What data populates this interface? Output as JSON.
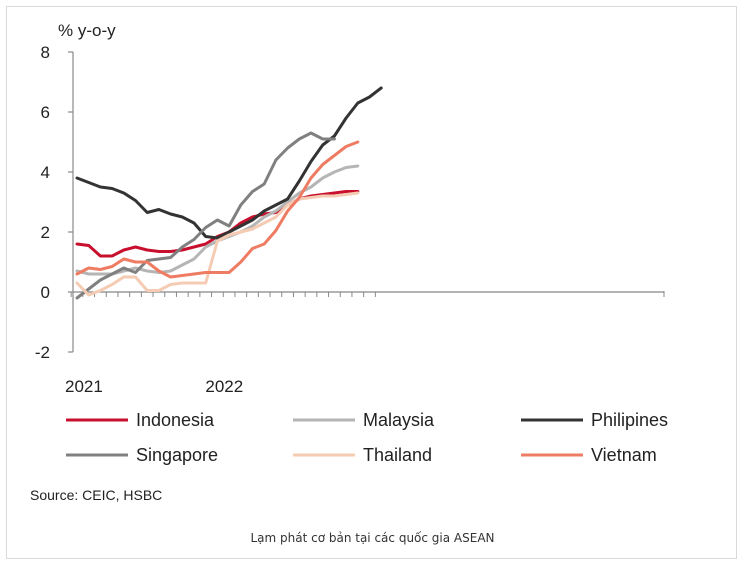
{
  "caption": "Lạm phát cơ bản tại các quốc gia ASEAN",
  "source": "Source: CEIC, HSBC",
  "chart_data": {
    "type": "line",
    "title": "",
    "ylabel": "% y-o-y",
    "xlabel": "",
    "ylim": [
      -2,
      8
    ],
    "yticks": [
      -2,
      0,
      2,
      4,
      6,
      8
    ],
    "x_tick_labels": [
      "2021",
      "2022"
    ],
    "x_tick_positions": [
      0,
      12
    ],
    "grid": false,
    "legend_position": "bottom",
    "x": [
      0,
      1,
      2,
      3,
      4,
      5,
      6,
      7,
      8,
      9,
      10,
      11,
      12,
      13,
      14,
      15,
      16,
      17,
      18,
      19,
      20,
      21,
      22,
      23,
      24,
      25,
      26
    ],
    "series": [
      {
        "name": "Indonesia",
        "color": "#c8102e",
        "values": [
          1.6,
          1.55,
          1.2,
          1.2,
          1.4,
          1.5,
          1.4,
          1.35,
          1.35,
          1.4,
          1.5,
          1.6,
          1.85,
          2.0,
          2.3,
          2.5,
          2.6,
          2.65,
          2.9,
          3.1,
          3.2,
          3.25,
          3.3,
          3.35,
          3.35,
          null,
          null
        ]
      },
      {
        "name": "Malaysia",
        "color": "#b5b5b5",
        "values": [
          0.7,
          0.6,
          0.6,
          0.6,
          0.7,
          0.8,
          0.7,
          0.65,
          0.7,
          0.9,
          1.1,
          1.5,
          1.7,
          1.85,
          2.0,
          2.2,
          2.5,
          2.7,
          3.0,
          3.3,
          3.5,
          3.8,
          4.0,
          4.15,
          4.2,
          null,
          null
        ]
      },
      {
        "name": "Philipines",
        "color": "#333333",
        "values": [
          3.8,
          3.65,
          3.5,
          3.45,
          3.3,
          3.05,
          2.65,
          2.75,
          2.6,
          2.5,
          2.3,
          1.85,
          1.8,
          2.0,
          2.2,
          2.4,
          2.7,
          2.9,
          3.1,
          3.7,
          4.35,
          4.9,
          5.2,
          5.8,
          6.3,
          6.5,
          6.8
        ]
      },
      {
        "name": "Singapore",
        "color": "#808080",
        "values": [
          -0.2,
          0.1,
          0.4,
          0.6,
          0.8,
          0.65,
          1.05,
          1.1,
          1.15,
          1.5,
          1.75,
          2.15,
          2.4,
          2.2,
          2.9,
          3.35,
          3.6,
          4.4,
          4.8,
          5.1,
          5.3,
          5.1,
          5.1,
          null,
          null,
          null,
          null
        ]
      },
      {
        "name": "Thailand",
        "color": "#f5cbb3",
        "values": [
          0.3,
          -0.1,
          0.05,
          0.25,
          0.5,
          0.5,
          0.05,
          0.05,
          0.25,
          0.3,
          0.3,
          0.3,
          1.7,
          1.9,
          2.0,
          2.1,
          2.3,
          2.5,
          2.9,
          3.1,
          3.15,
          3.2,
          3.2,
          3.25,
          3.3,
          null,
          null
        ]
      },
      {
        "name": "Vietnam",
        "color": "#ee7c63",
        "values": [
          0.6,
          0.8,
          0.75,
          0.85,
          1.1,
          1.0,
          1.0,
          0.7,
          0.5,
          0.55,
          0.6,
          0.65,
          0.65,
          0.65,
          1.0,
          1.45,
          1.6,
          2.05,
          2.7,
          3.15,
          3.8,
          4.25,
          4.55,
          4.85,
          5.0,
          null,
          null
        ]
      }
    ]
  }
}
